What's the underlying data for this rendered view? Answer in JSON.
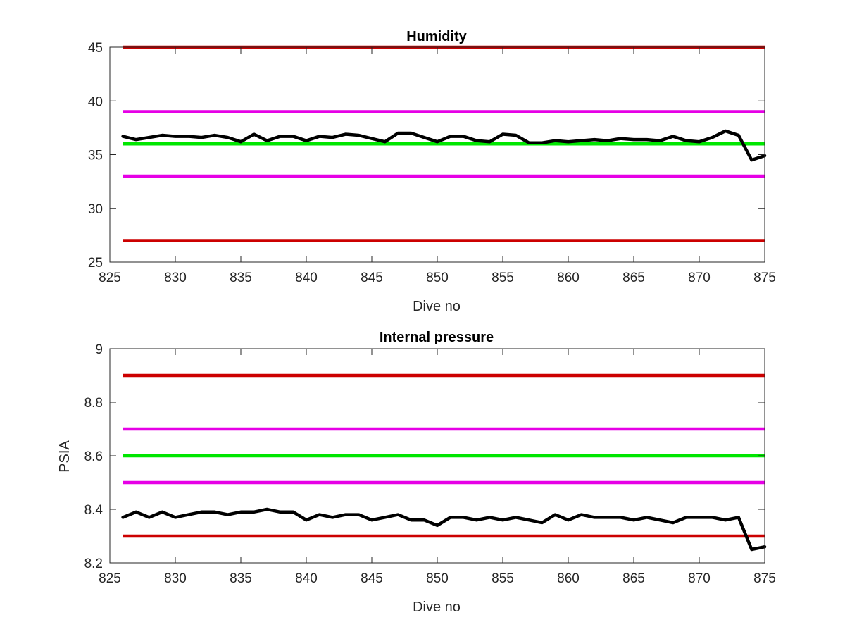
{
  "chart_data": [
    {
      "type": "line",
      "title": "Humidity",
      "xlabel": "Dive no",
      "ylabel": "",
      "xlim": [
        825,
        875
      ],
      "ylim": [
        25,
        45
      ],
      "xticks": [
        825,
        830,
        835,
        840,
        845,
        850,
        855,
        860,
        865,
        870,
        875
      ],
      "yticks": [
        25,
        30,
        35,
        40,
        45
      ],
      "xtick_labels": [
        "825",
        "830",
        "835",
        "840",
        "845",
        "850",
        "855",
        "860",
        "865",
        "870",
        "875"
      ],
      "ytick_labels": [
        "25",
        "30",
        "35",
        "40",
        "45"
      ],
      "grid": false,
      "reference_lines": [
        {
          "y": 45,
          "color": "#cc0000"
        },
        {
          "y": 39,
          "color": "#e600e6"
        },
        {
          "y": 36,
          "color": "#00e600"
        },
        {
          "y": 33,
          "color": "#e600e6"
        },
        {
          "y": 27,
          "color": "#cc0000"
        }
      ],
      "series": [
        {
          "color": "#000000",
          "x": [
            826,
            827,
            828,
            829,
            830,
            831,
            832,
            833,
            834,
            835,
            836,
            837,
            838,
            839,
            840,
            841,
            842,
            843,
            844,
            845,
            846,
            847,
            848,
            849,
            850,
            851,
            852,
            853,
            854,
            855,
            856,
            857,
            858,
            859,
            860,
            861,
            862,
            863,
            864,
            865,
            866,
            867,
            868,
            869,
            870,
            871,
            872,
            873,
            874,
            875
          ],
          "y": [
            36.7,
            36.4,
            36.6,
            36.8,
            36.7,
            36.7,
            36.6,
            36.8,
            36.6,
            36.2,
            36.9,
            36.3,
            36.7,
            36.7,
            36.3,
            36.7,
            36.6,
            36.9,
            36.8,
            36.5,
            36.2,
            37.0,
            37.0,
            36.6,
            36.2,
            36.7,
            36.7,
            36.3,
            36.2,
            36.9,
            36.8,
            36.1,
            36.1,
            36.3,
            36.2,
            36.3,
            36.4,
            36.3,
            36.5,
            36.4,
            36.4,
            36.3,
            36.7,
            36.3,
            36.2,
            36.6,
            37.2,
            36.8,
            34.5,
            34.9
          ]
        }
      ]
    },
    {
      "type": "line",
      "title": "Internal pressure",
      "xlabel": "Dive no",
      "ylabel": "PSIA",
      "xlim": [
        825,
        875
      ],
      "ylim": [
        8.2,
        9
      ],
      "xticks": [
        825,
        830,
        835,
        840,
        845,
        850,
        855,
        860,
        865,
        870,
        875
      ],
      "yticks": [
        8.2,
        8.4,
        8.6,
        8.8,
        9
      ],
      "xtick_labels": [
        "825",
        "830",
        "835",
        "840",
        "845",
        "850",
        "855",
        "860",
        "865",
        "870",
        "875"
      ],
      "ytick_labels": [
        "8.2",
        "8.4",
        "8.6",
        "8.8",
        "9"
      ],
      "grid": false,
      "reference_lines": [
        {
          "y": 8.9,
          "color": "#cc0000"
        },
        {
          "y": 8.7,
          "color": "#e600e6"
        },
        {
          "y": 8.6,
          "color": "#00e600"
        },
        {
          "y": 8.5,
          "color": "#e600e6"
        },
        {
          "y": 8.3,
          "color": "#cc0000"
        }
      ],
      "series": [
        {
          "color": "#000000",
          "x": [
            826,
            827,
            828,
            829,
            830,
            831,
            832,
            833,
            834,
            835,
            836,
            837,
            838,
            839,
            840,
            841,
            842,
            843,
            844,
            845,
            846,
            847,
            848,
            849,
            850,
            851,
            852,
            853,
            854,
            855,
            856,
            857,
            858,
            859,
            860,
            861,
            862,
            863,
            864,
            865,
            866,
            867,
            868,
            869,
            870,
            871,
            872,
            873,
            874,
            875
          ],
          "y": [
            8.37,
            8.39,
            8.37,
            8.39,
            8.37,
            8.38,
            8.39,
            8.39,
            8.38,
            8.39,
            8.39,
            8.4,
            8.39,
            8.39,
            8.36,
            8.38,
            8.37,
            8.38,
            8.38,
            8.36,
            8.37,
            8.38,
            8.36,
            8.36,
            8.34,
            8.37,
            8.37,
            8.36,
            8.37,
            8.36,
            8.37,
            8.36,
            8.35,
            8.38,
            8.36,
            8.38,
            8.37,
            8.37,
            8.37,
            8.36,
            8.37,
            8.36,
            8.35,
            8.37,
            8.37,
            8.37,
            8.36,
            8.37,
            8.25,
            8.26
          ]
        }
      ]
    }
  ]
}
